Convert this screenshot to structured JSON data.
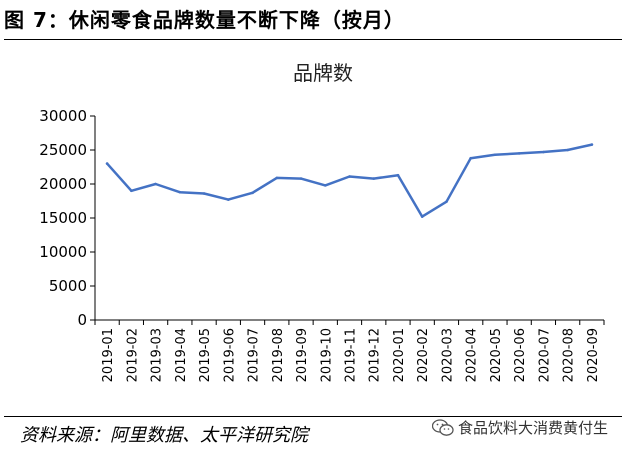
{
  "figure": {
    "title": "图 7：休闲零食品牌数量不断下降（按月）",
    "source": "资料来源：阿里数据、太平洋研究院",
    "watermark": "食品饮料大消费黄付生",
    "watermark_icon": "wechat-icon"
  },
  "chart_data": {
    "type": "line",
    "title": "品牌数",
    "xlabel": "",
    "ylabel": "",
    "ylim": [
      0,
      30000
    ],
    "yticks": [
      0,
      5000,
      10000,
      15000,
      20000,
      25000,
      30000
    ],
    "grid": false,
    "x": [
      "2019-01",
      "2019-02",
      "2019-03",
      "2019-04",
      "2019-05",
      "2019-06",
      "2019-07",
      "2019-08",
      "2019-09",
      "2019-10",
      "2019-11",
      "2019-12",
      "2020-01",
      "2020-02",
      "2020-03",
      "2020-04",
      "2020-05",
      "2020-06",
      "2020-07",
      "2020-08",
      "2020-09"
    ],
    "series": [
      {
        "values": [
          23000,
          19000,
          20000,
          18800,
          18600,
          17700,
          18700,
          20900,
          20800,
          19800,
          21100,
          20800,
          21300,
          15200,
          17400,
          23800,
          24300,
          24500,
          24700,
          25000,
          25800
        ],
        "color": "#4472C4"
      }
    ]
  }
}
